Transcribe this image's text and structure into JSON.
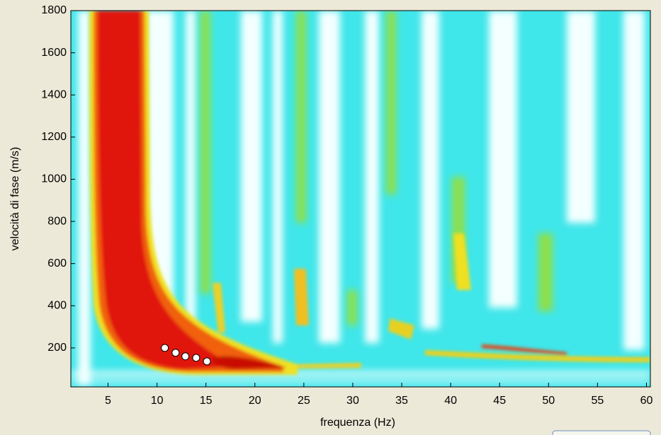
{
  "chart_data": {
    "type": "scatter",
    "x_label": "frequenza (Hz)",
    "y_label": "velocità di fase (m/s)",
    "x": [
      10.8,
      11.9,
      12.9,
      14,
      15.1
    ],
    "values": [
      200,
      177,
      160,
      153,
      136
    ],
    "color": "#ffffff",
    "xlim": [
      1.2,
      60.4
    ],
    "xticks": [
      5,
      10,
      15,
      20,
      25,
      30,
      35,
      40,
      45,
      50,
      55,
      60
    ],
    "ylim": [
      15,
      1800
    ],
    "yticks": [
      200,
      400,
      600,
      800,
      1000,
      1200,
      1400,
      1600,
      1800
    ],
    "grid": false
  }
}
